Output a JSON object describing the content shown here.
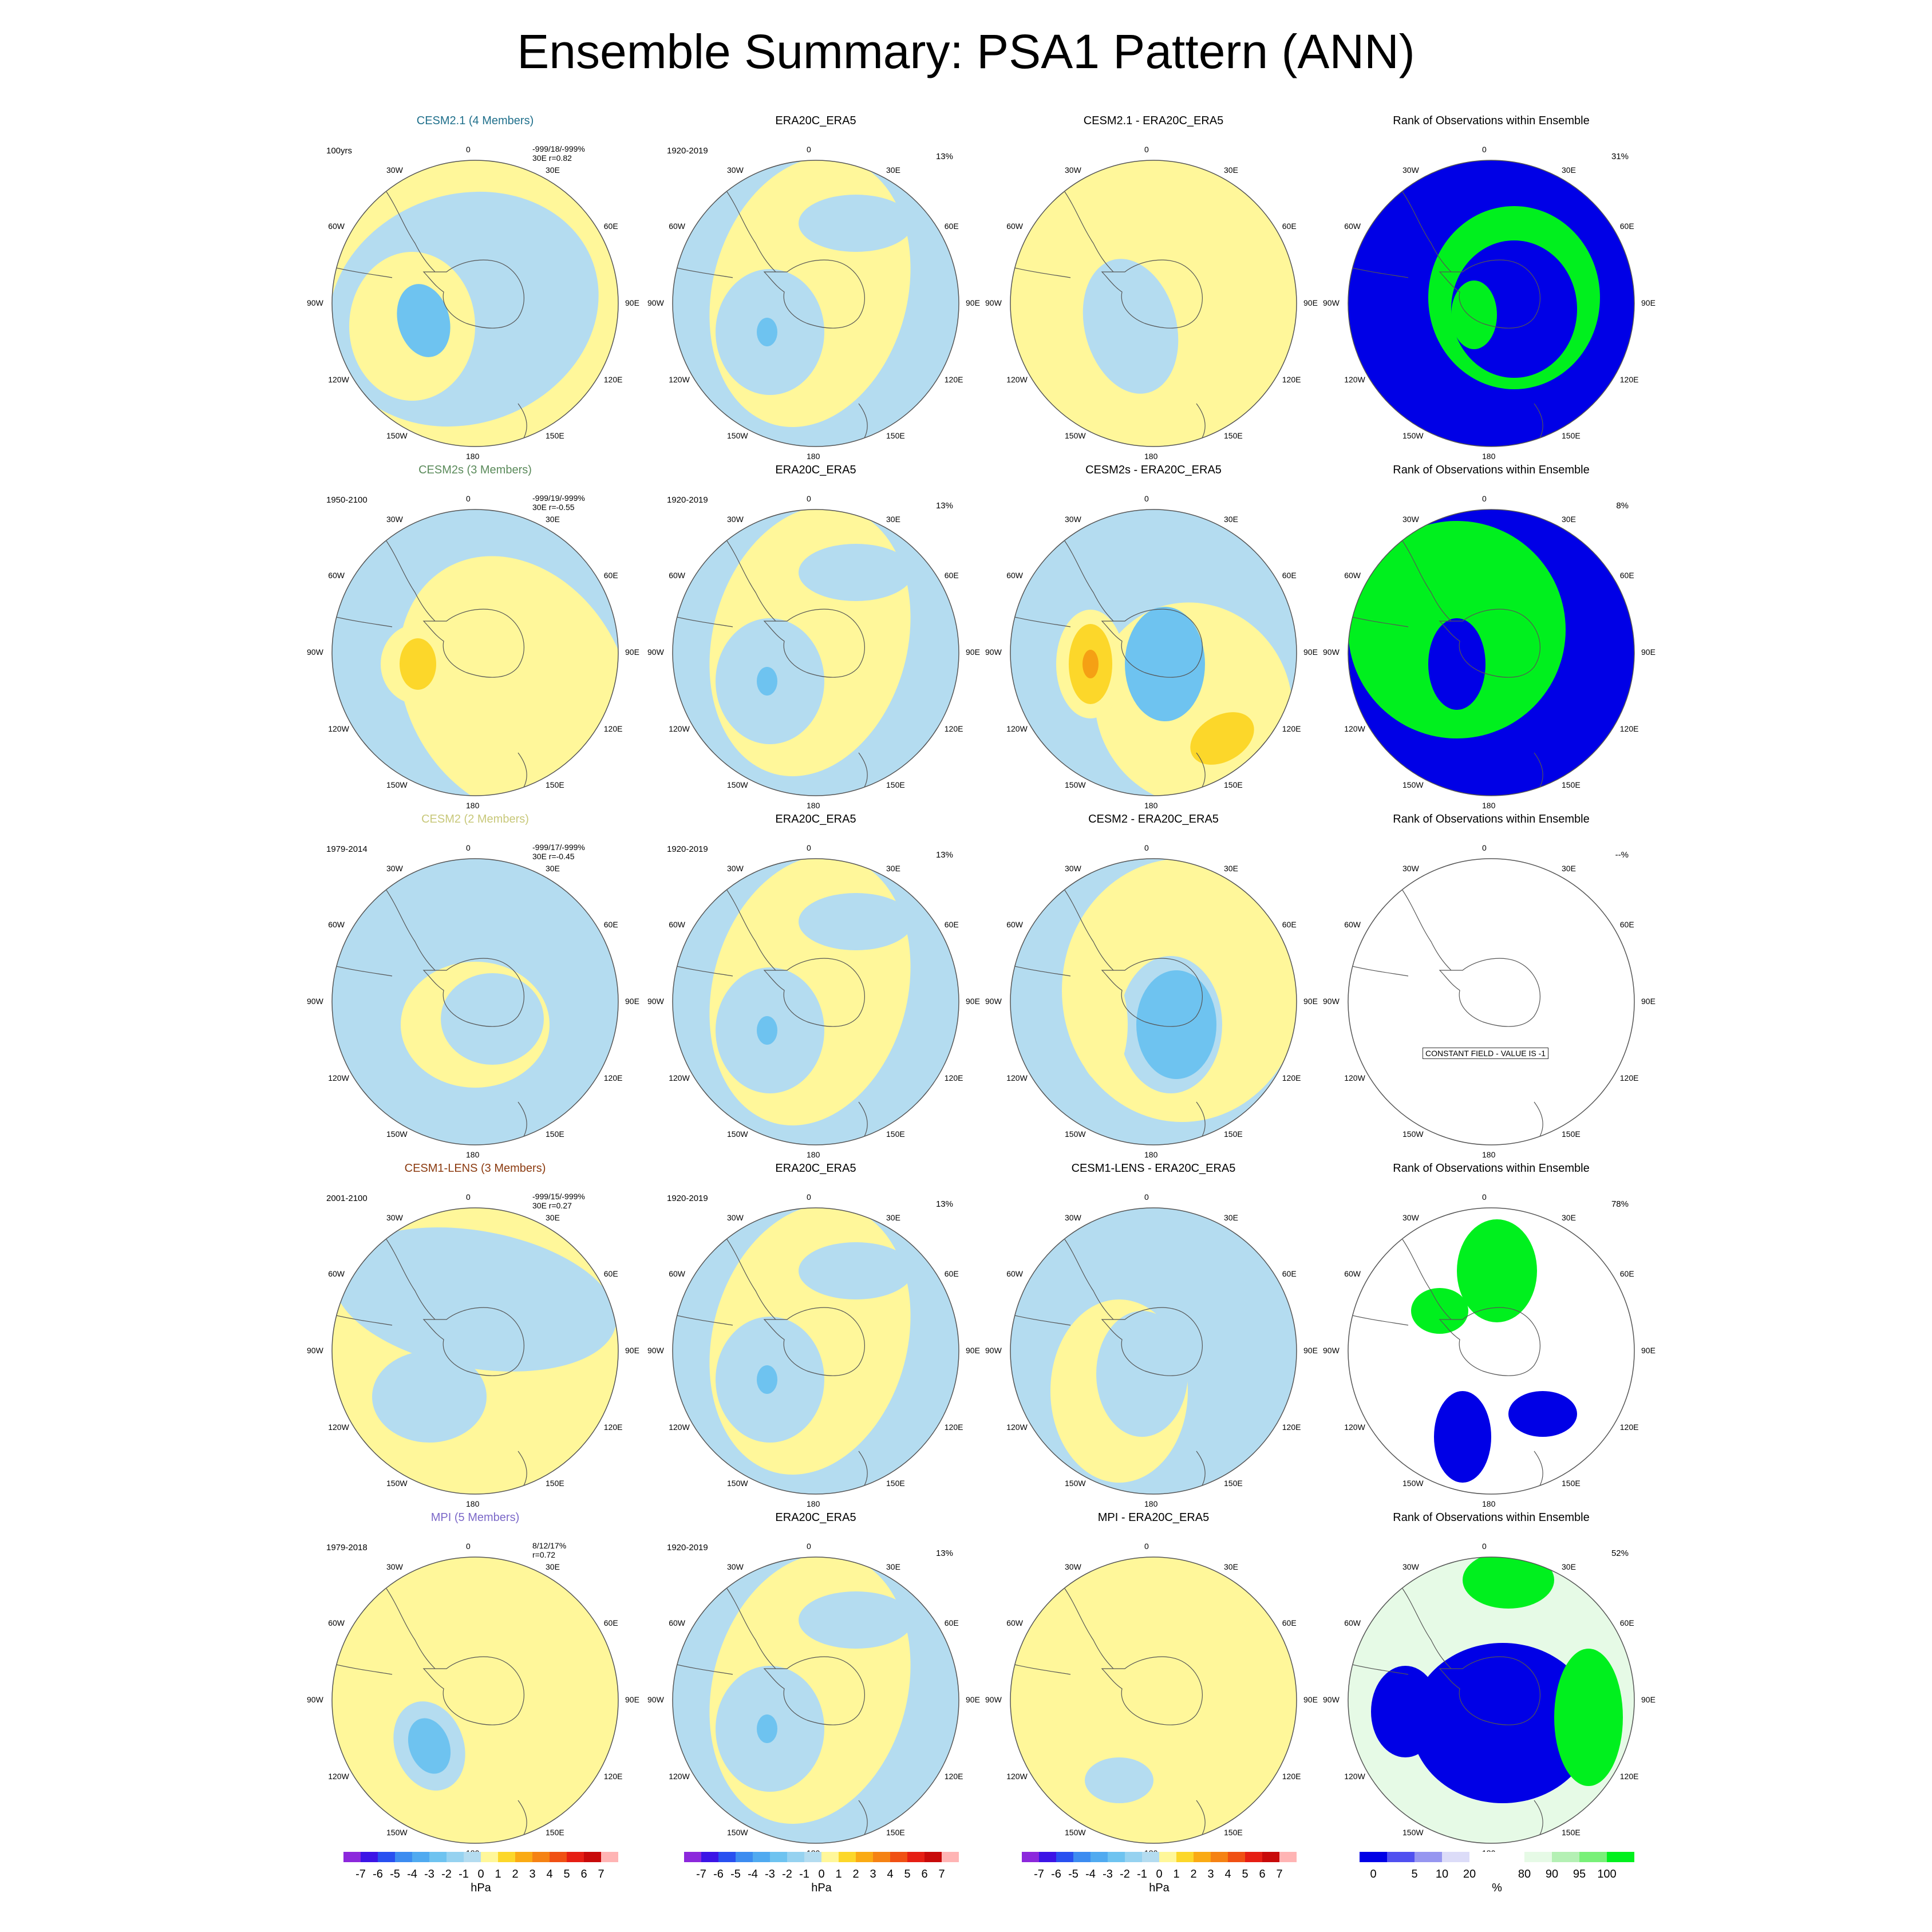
{
  "title": "Ensemble Summary: PSA1 Pattern (ANN)",
  "longitude_labels": [
    "0",
    "30E",
    "60E",
    "90E",
    "120E",
    "150E",
    "180",
    "150W",
    "120W",
    "90W",
    "60W",
    "30W"
  ],
  "colors": {
    "neg_light": "#b4dcf0",
    "neg_mid": "#6ec3f0",
    "neg_strong": "#3ca0e6",
    "pos_light": "#fff79a",
    "pos_mid": "#fcd72a",
    "pos_strong": "#f5a014",
    "rank_low": "#0000e6",
    "rank_high": "#00f01e",
    "rank_mid": "#e6fae6",
    "coast": "#555555",
    "rim": "#555555"
  },
  "rows": [
    {
      "model": {
        "title": "CESM2.1 (4 Members)",
        "title_color": "#1f6f8b",
        "years": "100yrs",
        "stats1": "-999/18/-999%",
        "stats2": "30E r=0.82"
      },
      "obs": {
        "title": "ERA20C_ERA5",
        "years": "1920-2019",
        "pct": "13%"
      },
      "diff": {
        "title": "CESM2.1 - ERA20C_ERA5"
      },
      "rank": {
        "title": "Rank of Observations within Ensemble",
        "pct": "31%"
      }
    },
    {
      "model": {
        "title": "CESM2s (3 Members)",
        "title_color": "#5a8a5a",
        "years": "1950-2100",
        "stats1": "-999/19/-999%",
        "stats2": "30E r=-0.55"
      },
      "obs": {
        "title": "ERA20C_ERA5",
        "years": "1920-2019",
        "pct": "13%"
      },
      "diff": {
        "title": "CESM2s - ERA20C_ERA5"
      },
      "rank": {
        "title": "Rank of Observations within Ensemble",
        "pct": "8%"
      }
    },
    {
      "model": {
        "title": "CESM2 (2 Members)",
        "title_color": "#c8c87a",
        "years": "1979-2014",
        "stats1": "-999/17/-999%",
        "stats2": "30E r=-0.45"
      },
      "obs": {
        "title": "ERA20C_ERA5",
        "years": "1920-2019",
        "pct": "13%"
      },
      "diff": {
        "title": "CESM2 - ERA20C_ERA5"
      },
      "rank": {
        "title": "Rank of Observations within Ensemble",
        "pct": "--%",
        "constant": "CONSTANT FIELD - VALUE IS -1"
      }
    },
    {
      "model": {
        "title": "CESM1-LENS (3 Members)",
        "title_color": "#8b3a0f",
        "years": "2001-2100",
        "stats1": "-999/15/-999%",
        "stats2": "30E r=0.27"
      },
      "obs": {
        "title": "ERA20C_ERA5",
        "years": "1920-2019",
        "pct": "13%"
      },
      "diff": {
        "title": "CESM1-LENS - ERA20C_ERA5"
      },
      "rank": {
        "title": "Rank of Observations within Ensemble",
        "pct": "78%"
      }
    },
    {
      "model": {
        "title": "MPI (5 Members)",
        "title_color": "#7b68c8",
        "years": "1979-2018",
        "stats1": "8/12/17%",
        "stats2": "r=0.72"
      },
      "obs": {
        "title": "ERA20C_ERA5",
        "years": "1920-2019",
        "pct": "13%"
      },
      "diff": {
        "title": "MPI - ERA20C_ERA5"
      },
      "rank": {
        "title": "Rank of Observations within Ensemble",
        "pct": "52%"
      }
    }
  ],
  "colorbar_hpa": {
    "colors": [
      "#8c28dc",
      "#3c14e6",
      "#2850f0",
      "#3c8cf0",
      "#50aaf0",
      "#6ec3f0",
      "#96d2f0",
      "#b4dcf0",
      "#fff79a",
      "#fcd72a",
      "#faaa14",
      "#f58214",
      "#f05014",
      "#e61e14",
      "#c80a0a",
      "#ffb4b4"
    ],
    "labels": [
      "-7",
      "-6",
      "-5",
      "-4",
      "-3",
      "-2",
      "-1",
      "0",
      "1",
      "2",
      "3",
      "4",
      "5",
      "6",
      "7"
    ],
    "unit": "hPa"
  },
  "colorbar_rank": {
    "colors": [
      "#0000e6",
      "#5050f0",
      "#9696f0",
      "#dcdcf8",
      "#ffffff",
      "#ffffff",
      "#e6fae6",
      "#b4f0b4",
      "#78f078",
      "#00f01e"
    ],
    "labels": [
      "0",
      "5",
      "10",
      "20",
      "80",
      "90",
      "95",
      "100"
    ],
    "unit": "%"
  }
}
